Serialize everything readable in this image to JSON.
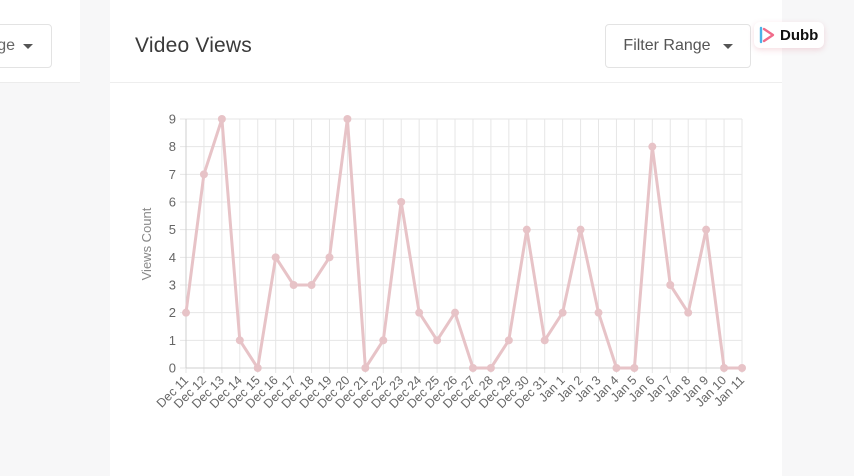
{
  "left_panel": {
    "dropdown_label": "ge"
  },
  "header": {
    "title": "Video Views",
    "filter_label": "Filter Range"
  },
  "logo": {
    "text": "Dubb"
  },
  "colors": {
    "line": "#e7c3c7",
    "grid": "#e6e6e6",
    "axis": "#9a9a9a"
  },
  "chart_data": {
    "type": "line",
    "title": "Video Views",
    "xlabel": "",
    "ylabel": "Views Count",
    "ylim": [
      0,
      9
    ],
    "yticks": [
      0,
      1,
      2,
      3,
      4,
      5,
      6,
      7,
      8,
      9
    ],
    "grid": true,
    "categories": [
      "Dec 11",
      "Dec 12",
      "Dec 13",
      "Dec 14",
      "Dec 15",
      "Dec 16",
      "Dec 17",
      "Dec 18",
      "Dec 19",
      "Dec 20",
      "Dec 21",
      "Dec 22",
      "Dec 23",
      "Dec 24",
      "Dec 25",
      "Dec 26",
      "Dec 27",
      "Dec 28",
      "Dec 29",
      "Dec 30",
      "Dec 31",
      "Jan 1",
      "Jan 2",
      "Jan 3",
      "Jan 4",
      "Jan 5",
      "Jan 6",
      "Jan 7",
      "Jan 8",
      "Jan 9",
      "Jan 10",
      "Jan 11"
    ],
    "series": [
      {
        "values": [
          2,
          7,
          9,
          1,
          0,
          4,
          3,
          3,
          4,
          9,
          0,
          1,
          6,
          2,
          1,
          2,
          0,
          0,
          1,
          5,
          1,
          2,
          5,
          2,
          0,
          0,
          8,
          3,
          2,
          5,
          0,
          0
        ]
      }
    ]
  }
}
